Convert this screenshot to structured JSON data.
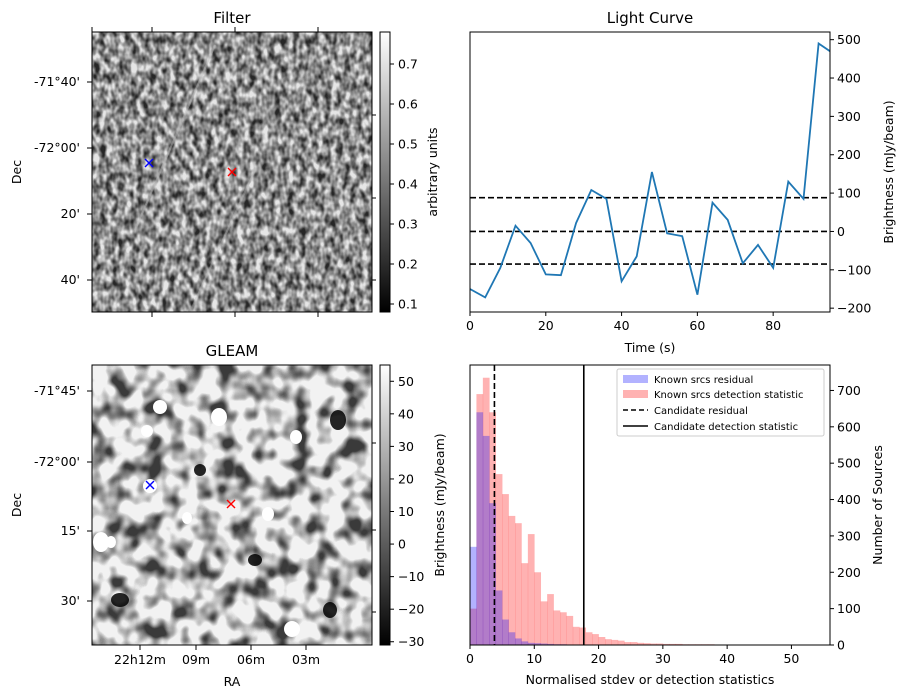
{
  "panels": {
    "filter": {
      "title": "Filter",
      "ylabel": "Dec",
      "yticks": [
        "-71°40'",
        "-72°00'",
        "20'",
        "40'"
      ],
      "colorbar": {
        "label": "arbitrary units",
        "ticks": [
          "0.7",
          "0.6",
          "0.5",
          "0.4",
          "0.3",
          "0.2",
          "0.1"
        ],
        "range": [
          0.08,
          0.78
        ]
      },
      "markers": [
        {
          "color": "#0000ff",
          "symbol": "x"
        },
        {
          "color": "#ff0000",
          "symbol": "x"
        }
      ]
    },
    "gleam": {
      "title": "GLEAM",
      "ylabel": "Dec",
      "xlabel": "RA",
      "yticks": [
        "-71°45'",
        "-72°00'",
        "15'",
        "30'"
      ],
      "xticks": [
        "22h12m",
        "09m",
        "06m",
        "03m"
      ],
      "colorbar": {
        "label": "Brightness (mJy/beam)",
        "ticks": [
          "50",
          "40",
          "30",
          "20",
          "10",
          "0",
          "−10",
          "−20",
          "−30"
        ],
        "range": [
          -31,
          55
        ]
      },
      "markers": [
        {
          "color": "#0000ff",
          "symbol": "x"
        },
        {
          "color": "#ff0000",
          "symbol": "x"
        }
      ]
    }
  },
  "chart_data": [
    {
      "type": "line",
      "title": "Light Curve",
      "xlabel": "Time (s)",
      "ylabel": "Brightness (mJy/beam)",
      "xlim": [
        0,
        95
      ],
      "ylim": [
        -210,
        520
      ],
      "xticks": [
        "0",
        "20",
        "40",
        "60",
        "80"
      ],
      "yticks": [
        "500",
        "400",
        "300",
        "200",
        "100",
        "0",
        "−100",
        "−200"
      ],
      "series_color": "#1f77b4",
      "x": [
        0,
        4,
        8,
        12,
        16,
        20,
        24,
        28,
        32,
        36,
        40,
        44,
        48,
        52,
        56,
        60,
        64,
        68,
        72,
        76,
        80,
        84,
        88,
        92,
        95
      ],
      "y": [
        -150,
        -172,
        -95,
        15,
        -30,
        -112,
        -114,
        22,
        108,
        85,
        -130,
        -65,
        155,
        -5,
        -12,
        -165,
        75,
        30,
        -83,
        -35,
        -95,
        130,
        85,
        490,
        470
      ],
      "hlines": [
        88,
        0,
        -85
      ]
    },
    {
      "type": "bar",
      "title": "",
      "xlabel": "Normalised stdev or detection statistics",
      "ylabel": "Number of Sources",
      "xlim": [
        0,
        56
      ],
      "ylim": [
        0,
        770
      ],
      "xticks": [
        "0",
        "10",
        "20",
        "30",
        "40",
        "50"
      ],
      "yticks": [
        "700",
        "600",
        "500",
        "400",
        "300",
        "200",
        "100",
        "0"
      ],
      "legend_position": "top-right",
      "bin_width": 1,
      "series": [
        {
          "name": "Known srcs residual",
          "color": "#0000ff",
          "bin_start": 0,
          "values": [
            270,
            640,
            575,
            390,
            150,
            70,
            35,
            18,
            10,
            6,
            5,
            4,
            3,
            2,
            2,
            1
          ]
        },
        {
          "name": "Known srcs detection statistic",
          "color": "#ff0000",
          "bin_start": 0,
          "values": [
            100,
            690,
            735,
            640,
            470,
            415,
            355,
            335,
            225,
            305,
            200,
            120,
            140,
            95,
            90,
            80,
            50,
            48,
            35,
            30,
            22,
            16,
            14,
            12,
            8,
            8,
            6,
            5,
            4,
            4,
            3,
            3,
            3,
            2,
            2,
            2,
            2,
            2,
            1,
            1,
            1,
            1,
            1,
            1,
            1,
            1,
            1,
            1,
            0,
            1,
            0,
            1,
            0,
            0,
            0,
            1
          ]
        }
      ],
      "vlines": [
        {
          "name": "Candidate residual",
          "x": 3.8,
          "style": "dashed"
        },
        {
          "name": "Candidate detection statistic",
          "x": 17.7,
          "style": "solid"
        }
      ]
    }
  ]
}
